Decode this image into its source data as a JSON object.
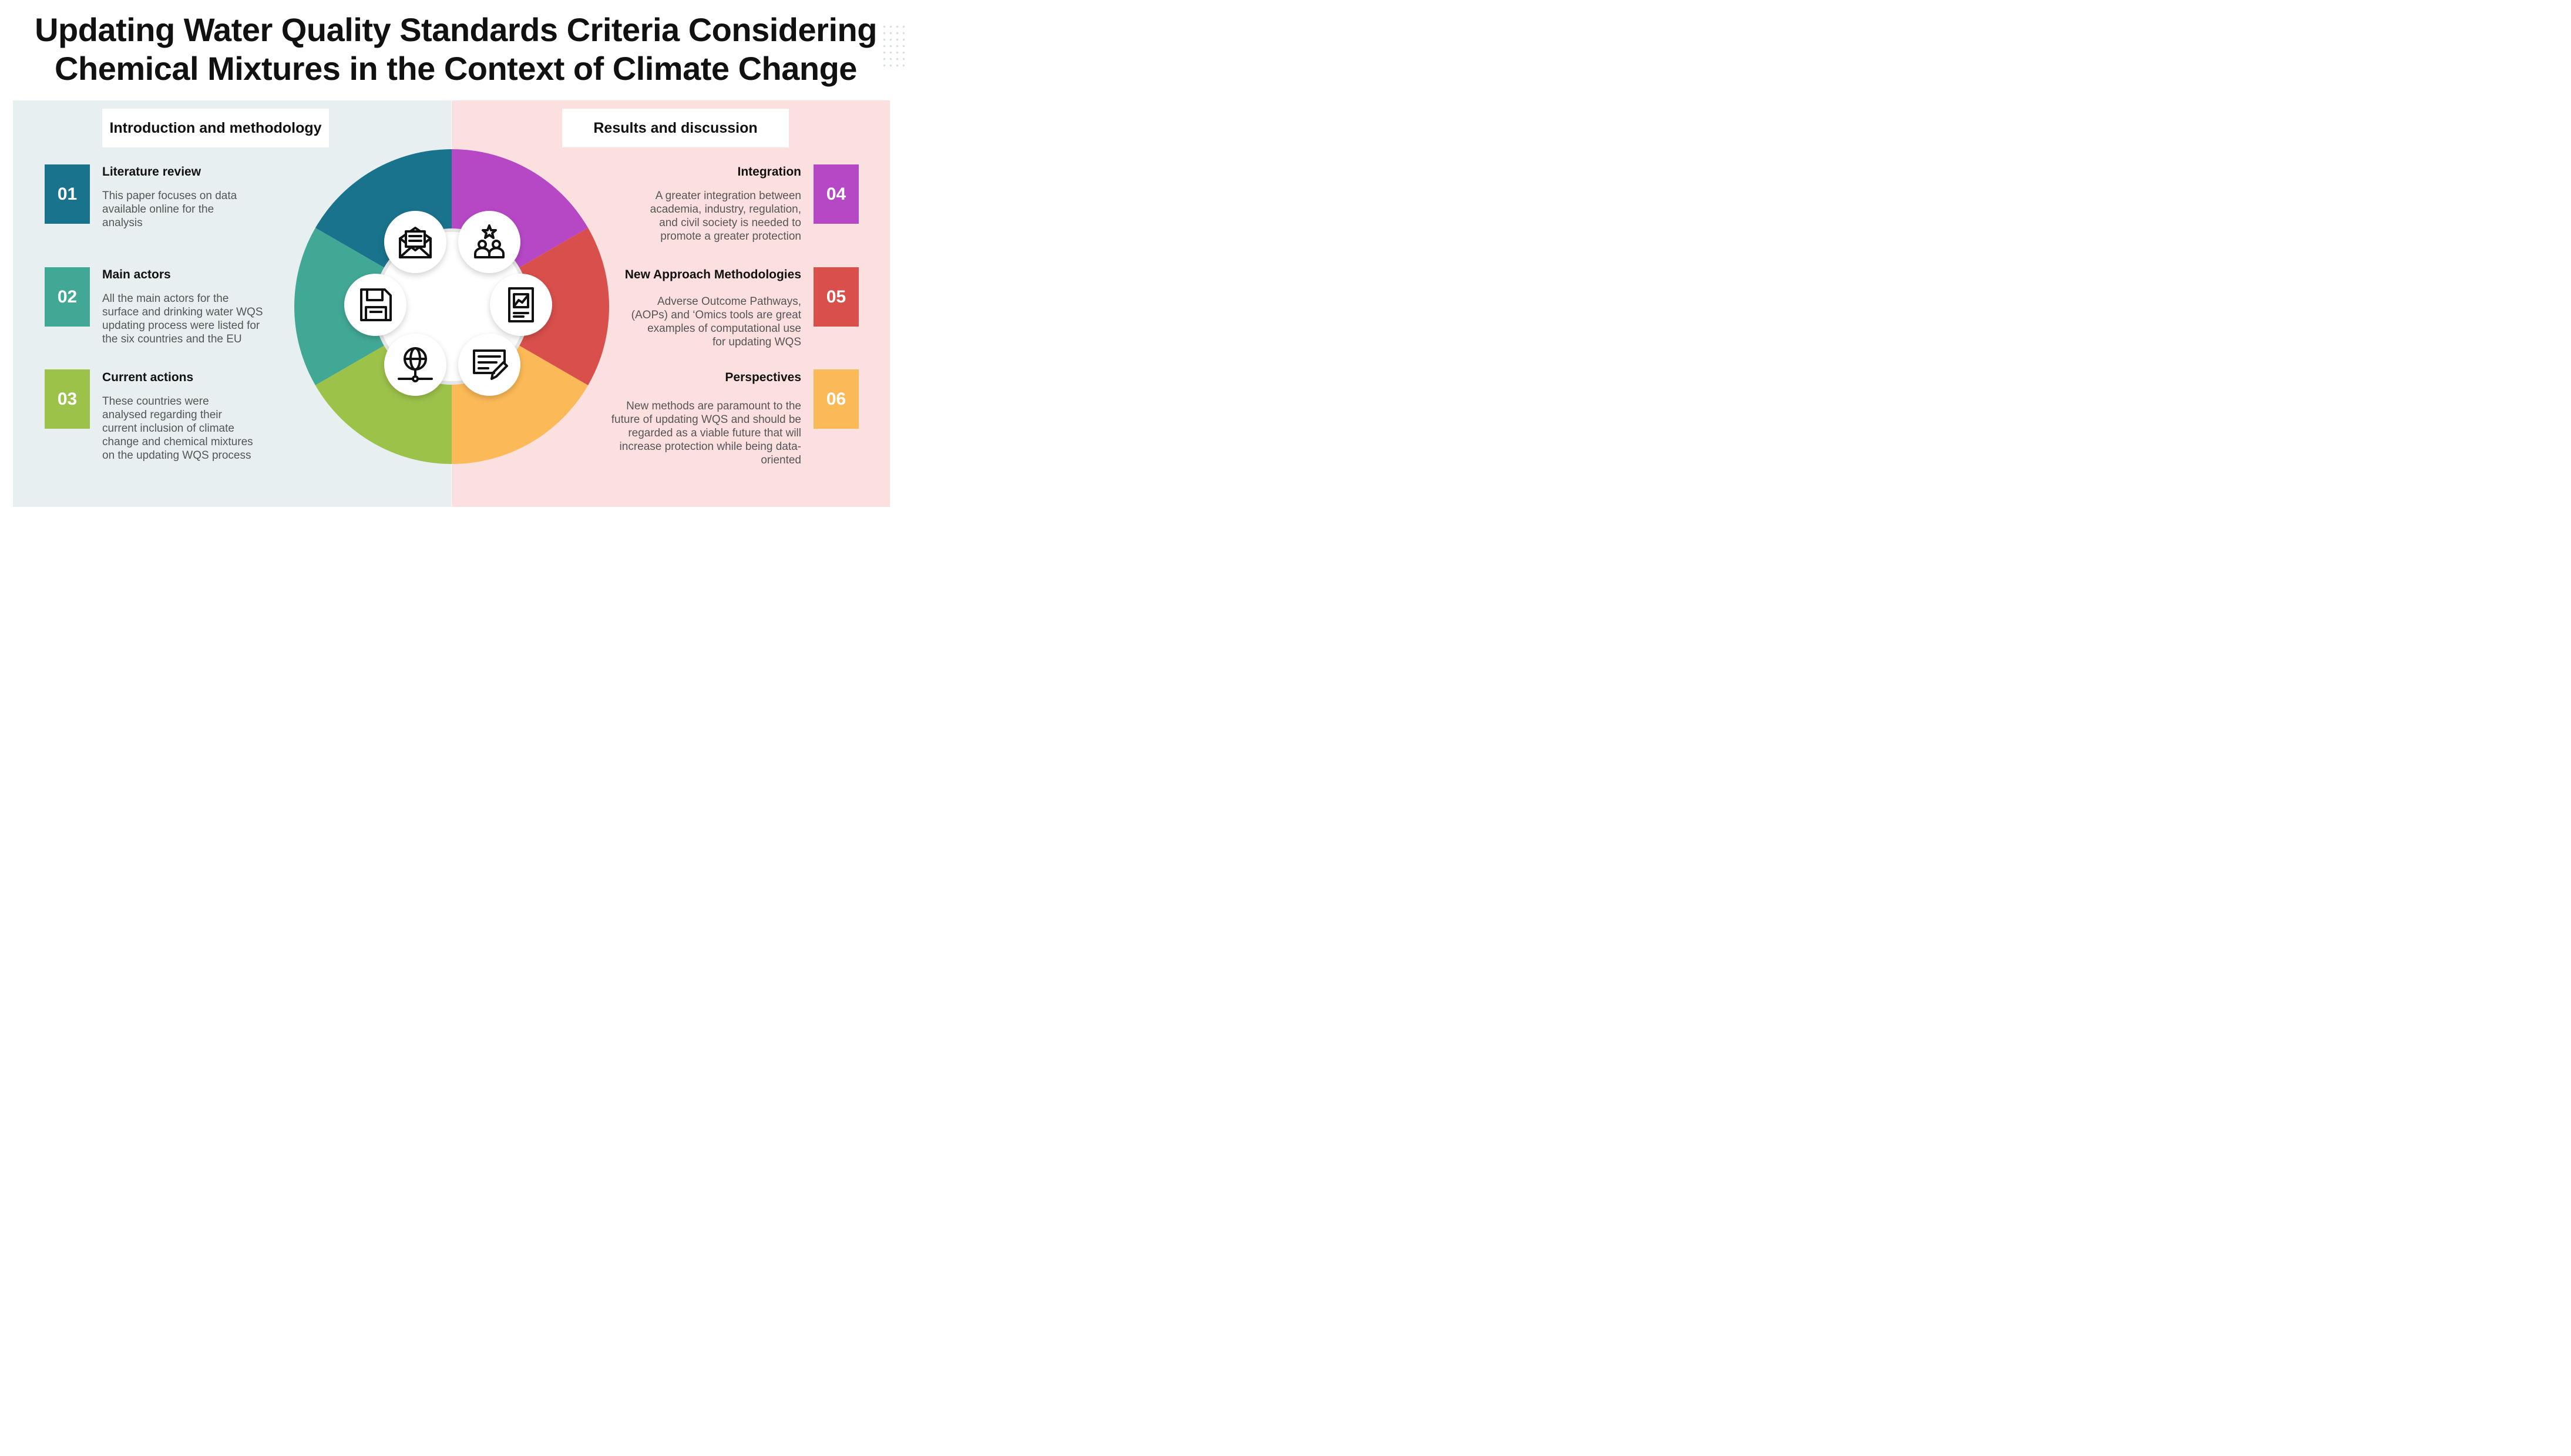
{
  "title": {
    "line1": "Updating Water Quality Standards Criteria Considering",
    "line2": "Chemical Mixtures in the Context of Climate Change"
  },
  "left_section": {
    "heading": "Introduction and methodology",
    "items": [
      {
        "number": "01",
        "title": "Literature review",
        "description": "This paper focuses on data\navailable online for the\nanalysis",
        "color": "#1a738c"
      },
      {
        "number": "02",
        "title": "Main actors",
        "description": "All the main actors for the\nsurface and drinking water WQS\nupdating process were listed for\nthe six countries and the EU",
        "color": "#42a896"
      },
      {
        "number": "03",
        "title": "Current actions",
        "description": "These countries were\nanalysed regarding their\ncurrent inclusion of climate\nchange and chemical mixtures\non the updating WQS process",
        "color": "#9dc24a"
      }
    ]
  },
  "right_section": {
    "heading": "Results and discussion",
    "items": [
      {
        "number": "04",
        "title": "Integration",
        "description": "A greater integration between\nacademia, industry, regulation,\nand civil society is needed to\npromote a greater protection",
        "color": "#b648c6"
      },
      {
        "number": "05",
        "title": "New Approach Methodologies",
        "description": "Adverse Outcome Pathways,\n(AOPs) and ‘Omics tools are great\nexamples of computational use\nfor updating WQS",
        "color": "#d84f4b"
      },
      {
        "number": "06",
        "title": "Perspectives",
        "description": "New methods are paramount to the\nfuture of updating WQS and should be\nregarded as a viable future that will\nincrease protection  while being data-\noriented",
        "color": "#fcb957"
      }
    ]
  },
  "diagram": {
    "segments": [
      {
        "name": "01",
        "color": "#1a738c"
      },
      {
        "name": "02",
        "color": "#42a896"
      },
      {
        "name": "03",
        "color": "#9dc24a"
      },
      {
        "name": "04",
        "color": "#b648c6"
      },
      {
        "name": "05",
        "color": "#d84f4b"
      },
      {
        "name": "06",
        "color": "#fcb957"
      }
    ],
    "icons": [
      "envelope-document-icon",
      "floppy-disk-icon",
      "globe-network-icon",
      "team-star-icon",
      "report-chart-icon",
      "edit-document-icon"
    ]
  }
}
